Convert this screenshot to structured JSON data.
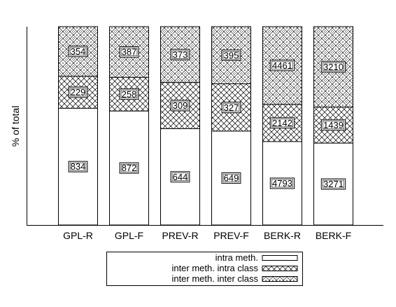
{
  "chart_data": {
    "type": "bar",
    "stacked": "percent",
    "ylabel": "% of total",
    "xlabel": "",
    "title": "",
    "ylim": [
      0,
      100
    ],
    "grid": false,
    "legend_position": "bottom-center",
    "categories": [
      "GPL-R",
      "GPL-F",
      "PREV-R",
      "PREV-F",
      "BERK-R",
      "BERK-F"
    ],
    "series": [
      {
        "name": "intra meth.",
        "pattern": "blank",
        "values": [
          834,
          872,
          644,
          649,
          4793,
          3271
        ]
      },
      {
        "name": "inter meth. intra class",
        "pattern": "crosshatch",
        "values": [
          229,
          258,
          309,
          327,
          2142,
          1439
        ]
      },
      {
        "name": "inter meth. inter class",
        "pattern": "diamond",
        "values": [
          354,
          387,
          373,
          395,
          4461,
          3210
        ]
      }
    ]
  }
}
